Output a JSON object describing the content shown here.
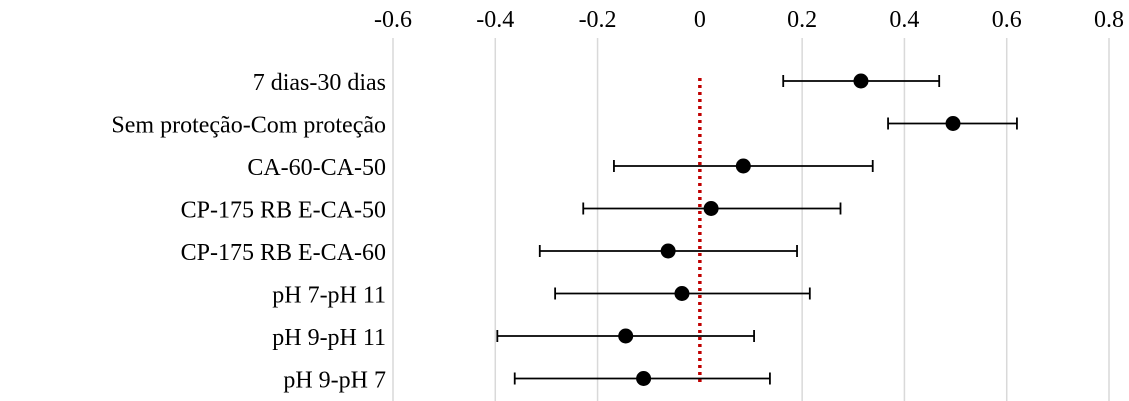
{
  "chart_data": {
    "type": "scatter",
    "orientation": "horizontal",
    "x_ticks": [
      "-0.6",
      "-0.4",
      "-0.2",
      "0",
      "0.2",
      "0.4",
      "0.6",
      "0.8"
    ],
    "x_tick_values": [
      -0.6,
      -0.4,
      -0.2,
      0,
      0.2,
      0.4,
      0.6,
      0.8
    ],
    "xlim": [
      -0.6,
      0.8
    ],
    "x_axis_position": "top",
    "grid": "vertical",
    "reference_line": {
      "x": 0,
      "style": "dotted",
      "color": "#c00000"
    },
    "categories": [
      "7 dias-30 dias",
      "Sem proteção-Com proteção",
      "CA-60-CA-50",
      "CP-175 RB E-CA-50",
      "CP-175 RB E-CA-60",
      "pH 7-pH 11",
      "pH 9-pH 11",
      "pH 9-pH 7"
    ],
    "estimates": [
      0.315,
      0.495,
      0.085,
      0.022,
      -0.062,
      -0.035,
      -0.145,
      -0.11
    ],
    "lower": [
      0.163,
      0.368,
      -0.168,
      -0.228,
      -0.313,
      -0.283,
      -0.396,
      -0.362
    ],
    "upper": [
      0.468,
      0.62,
      0.338,
      0.275,
      0.19,
      0.215,
      0.106,
      0.137
    ]
  }
}
